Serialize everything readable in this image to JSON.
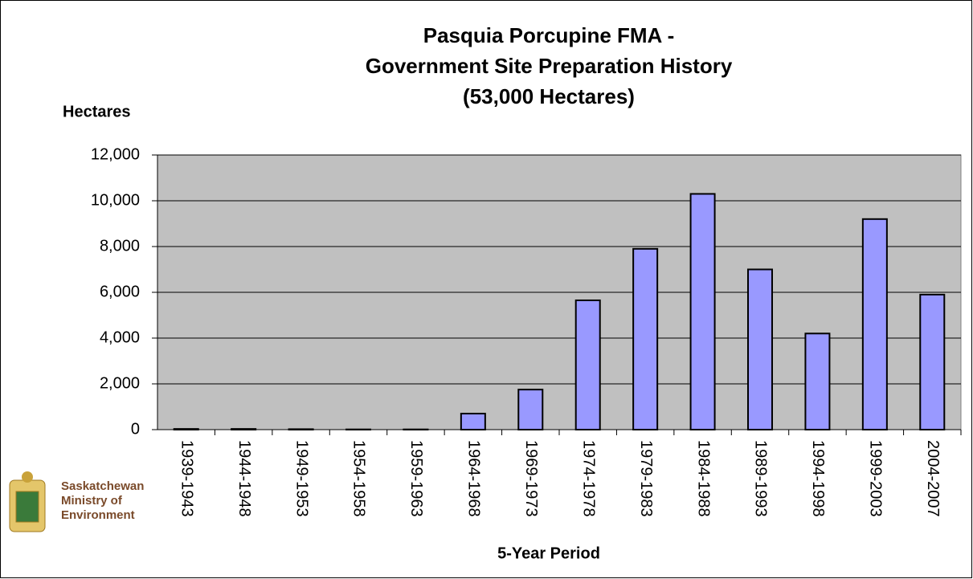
{
  "chart_data": {
    "type": "bar",
    "title": [
      "Pasquia Porcupine FMA -",
      "Government Site Preparation History",
      "(53,000 Hectares)"
    ],
    "y_label": "Hectares",
    "x_label": "5-Year Period",
    "logo_text": [
      "Saskatchewan",
      "Ministry of",
      "Environment"
    ],
    "categories": [
      "1939-1943",
      "1944-1948",
      "1949-1953",
      "1954-1958",
      "1959-1963",
      "1964-1968",
      "1969-1973",
      "1974-1978",
      "1979-1983",
      "1984-1988",
      "1989-1993",
      "1994-1998",
      "1999-2003",
      "2004-2007"
    ],
    "values": [
      30,
      30,
      20,
      10,
      10,
      700,
      1750,
      5650,
      7900,
      10300,
      7000,
      4200,
      9200,
      5900
    ],
    "color": "#9999ff",
    "plot_background": "#c0c0c0",
    "ylim": [
      0,
      12000
    ],
    "yticks": [
      0,
      {
        "value": 2000,
        "label": "2,000"
      },
      {
        "value": 4000,
        "label": "4,000"
      },
      {
        "value": 6000,
        "label": "6,000"
      },
      {
        "value": 8000,
        "label": "8,000"
      },
      {
        "value": 10000,
        "label": "10,000"
      },
      {
        "value": 12000,
        "label": "12,000"
      }
    ],
    "grid": true
  }
}
